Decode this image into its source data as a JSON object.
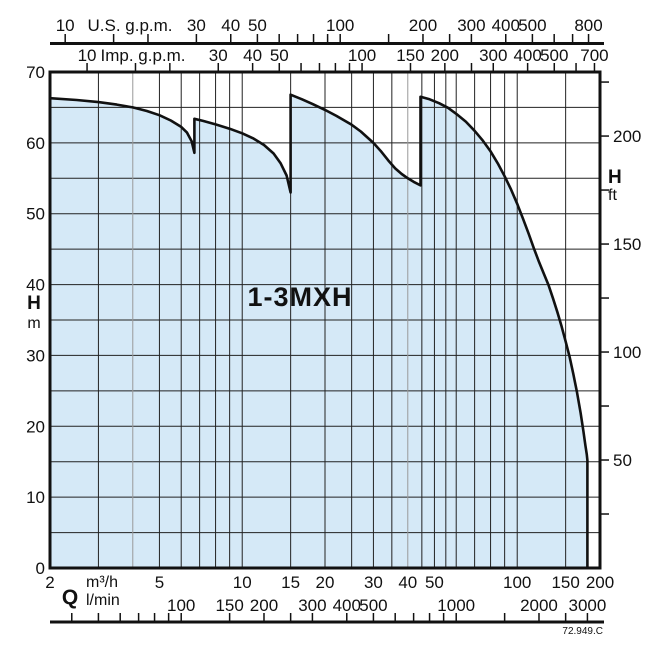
{
  "title": "1-3MXH",
  "drawing_code": "72.949.C",
  "colors": {
    "fill": "#d5e9f7",
    "stroke": "#111111",
    "grid": "#222222",
    "grid_light": "#9a9a9a"
  },
  "axes": {
    "us_gpm": {
      "unit_label": "U.S. g.p.m.",
      "to_m3h": 0.227125,
      "labeled": [
        10,
        30,
        40,
        50,
        100,
        200,
        300,
        400,
        500,
        800
      ],
      "ticks": [
        10,
        15,
        20,
        30,
        40,
        50,
        60,
        70,
        80,
        90,
        100,
        150,
        200,
        250,
        300,
        400,
        500,
        600,
        700,
        800
      ]
    },
    "imp_gpm": {
      "unit_label": "Imp. g.p.m.",
      "to_m3h": 0.272766,
      "labeled": [
        10,
        30,
        40,
        50,
        100,
        150,
        200,
        300,
        400,
        500,
        700
      ],
      "ticks": [
        10,
        15,
        20,
        30,
        40,
        50,
        60,
        70,
        80,
        90,
        100,
        150,
        200,
        250,
        300,
        400,
        500,
        600,
        700
      ]
    },
    "m3h": {
      "axis_letter": "Q",
      "unit_label": "m³/h",
      "range": [
        2,
        200
      ],
      "labeled": [
        2,
        5,
        10,
        15,
        20,
        30,
        40,
        50,
        100,
        150,
        200
      ]
    },
    "lmin": {
      "unit_label": "l/min",
      "to_m3h": 0.06,
      "labeled": [
        100,
        150,
        200,
        300,
        400,
        500,
        1000,
        2000,
        3000
      ],
      "ticks": [
        40,
        50,
        60,
        70,
        80,
        90,
        100,
        150,
        200,
        250,
        300,
        400,
        500,
        600,
        700,
        800,
        900,
        1000,
        1500,
        2000,
        2500,
        3000
      ]
    },
    "h_m": {
      "axis_letter": "H",
      "unit_label": "m",
      "range": [
        0,
        70
      ],
      "labeled": [
        0,
        10,
        20,
        30,
        40,
        50,
        60,
        70
      ],
      "grid_step": 5
    },
    "h_ft": {
      "axis_letter": "H",
      "unit_label": "ft",
      "m_per_ft": 0.3048,
      "labeled": [
        50,
        100,
        150,
        200
      ],
      "ticks": [
        25,
        50,
        75,
        100,
        125,
        150,
        175,
        200,
        225
      ]
    }
  },
  "grid_q": [
    3,
    4,
    5,
    6,
    7,
    8,
    9,
    10,
    15,
    20,
    25,
    30,
    35,
    40,
    45,
    50,
    55,
    60,
    70,
    80,
    90,
    100,
    150
  ],
  "grid_q_light": [
    4,
    40
  ],
  "chart_data": {
    "type": "area",
    "title": "1-3MXH",
    "x_axis_label": "Q",
    "x_axis_units": [
      "m³/h",
      "l/min",
      "U.S. g.p.m.",
      "Imp. g.p.m."
    ],
    "x_scale": "log",
    "x_range_m3h": [
      2,
      200
    ],
    "y_axis_label": "H",
    "y_axis_units": [
      "m",
      "ft"
    ],
    "y_range_m": [
      0,
      70
    ],
    "grid": true,
    "envelope_m3h_m": [
      [
        2,
        66.3
      ],
      [
        2.5,
        66.05
      ],
      [
        3,
        65.75
      ],
      [
        3.5,
        65.4
      ],
      [
        4,
        65.0
      ],
      [
        4.5,
        64.5
      ],
      [
        5,
        63.9
      ],
      [
        5.5,
        63.15
      ],
      [
        6,
        62.25
      ],
      [
        6.3,
        61.45
      ],
      [
        6.55,
        60.2
      ],
      [
        6.7,
        58.6
      ],
      [
        6.7,
        63.4
      ],
      [
        7.2,
        63.1
      ],
      [
        8,
        62.6
      ],
      [
        9,
        62.0
      ],
      [
        10,
        61.35
      ],
      [
        11,
        60.6
      ],
      [
        12,
        59.7
      ],
      [
        13,
        58.5
      ],
      [
        13.8,
        57.1
      ],
      [
        14.5,
        55.4
      ],
      [
        15,
        53.0
      ],
      [
        15,
        66.8
      ],
      [
        16.5,
        66.15
      ],
      [
        18,
        65.5
      ],
      [
        20,
        64.65
      ],
      [
        22,
        63.8
      ],
      [
        25,
        62.55
      ],
      [
        27,
        61.6
      ],
      [
        30,
        60.0
      ],
      [
        32,
        58.8
      ],
      [
        34,
        57.5
      ],
      [
        36,
        56.4
      ],
      [
        38,
        55.6
      ],
      [
        40,
        55.0
      ],
      [
        42,
        54.5
      ],
      [
        44.5,
        54.0
      ],
      [
        44.5,
        66.5
      ],
      [
        48,
        66.15
      ],
      [
        52,
        65.6
      ],
      [
        56,
        64.95
      ],
      [
        60,
        64.1
      ],
      [
        65,
        63.0
      ],
      [
        70,
        61.7
      ],
      [
        75,
        60.3
      ],
      [
        80,
        58.8
      ],
      [
        85,
        57.1
      ],
      [
        90,
        55.3
      ],
      [
        95,
        53.4
      ],
      [
        100,
        51.4
      ],
      [
        105,
        49.3
      ],
      [
        110,
        47.2
      ],
      [
        115,
        45.1
      ],
      [
        120,
        43.2
      ],
      [
        125,
        41.5
      ],
      [
        130,
        39.9
      ],
      [
        135,
        38.0
      ],
      [
        140,
        36.1
      ],
      [
        145,
        34.1
      ],
      [
        150,
        32.0
      ],
      [
        155,
        29.8
      ],
      [
        160,
        27.4
      ],
      [
        165,
        24.8
      ],
      [
        170,
        21.9
      ],
      [
        174,
        19.3
      ],
      [
        177,
        17.3
      ],
      [
        179,
        16.0
      ],
      [
        180,
        15.2
      ],
      [
        180,
        0
      ]
    ]
  }
}
